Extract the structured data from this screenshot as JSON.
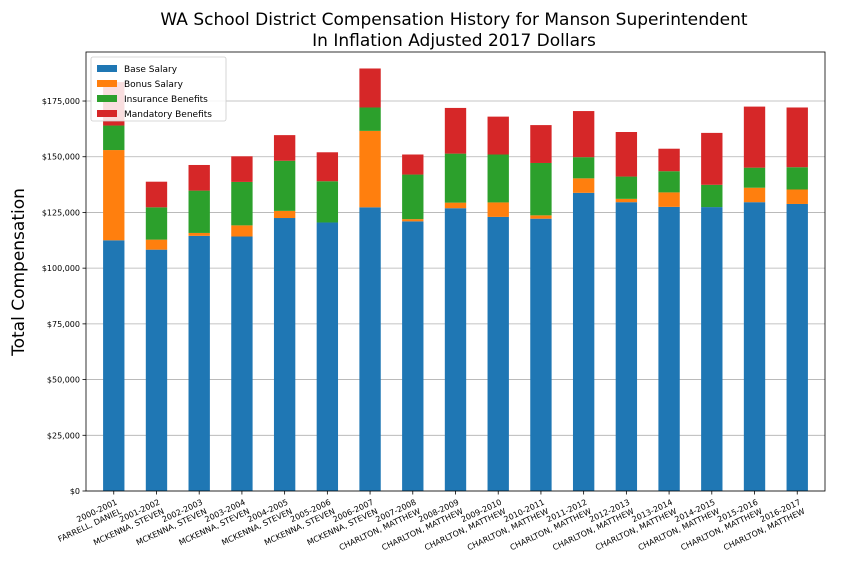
{
  "chart_data": {
    "type": "bar",
    "stacked": true,
    "title_line1": "WA School District Compensation History for Manson Superintendent",
    "title_line2": "In Inflation Adjusted 2017 Dollars",
    "ylabel": "Total Compensation",
    "xlabel": "",
    "ylim": [
      0,
      197000
    ],
    "yticks": [
      {
        "value": 0,
        "label": "$0"
      },
      {
        "value": 25000,
        "label": "$25,000"
      },
      {
        "value": 50000,
        "label": "$50,000"
      },
      {
        "value": 75000,
        "label": "$75,000"
      },
      {
        "value": 100000,
        "label": "$100,000"
      },
      {
        "value": 125000,
        "label": "$125,000"
      },
      {
        "value": 150000,
        "label": "$150,000"
      },
      {
        "value": 175000,
        "label": "$175,000"
      }
    ],
    "grid": "horizontal",
    "legend_position": "top-left",
    "categories": [
      {
        "year": "2000-2001",
        "name": "FARRELL, DANIEL"
      },
      {
        "year": "2001-2002",
        "name": "MCKENNA, STEVEN"
      },
      {
        "year": "2002-2003",
        "name": "MCKENNA, STEVEN"
      },
      {
        "year": "2003-2004",
        "name": "MCKENNA, STEVEN"
      },
      {
        "year": "2004-2005",
        "name": "MCKENNA, STEVEN"
      },
      {
        "year": "2005-2006",
        "name": "MCKENNA, STEVEN"
      },
      {
        "year": "2006-2007",
        "name": "MCKENNA, STEVEN"
      },
      {
        "year": "2007-2008",
        "name": "CHARLTON, MATTHEW"
      },
      {
        "year": "2008-2009",
        "name": "CHARLTON, MATTHEW"
      },
      {
        "year": "2009-2010",
        "name": "CHARLTON, MATTHEW"
      },
      {
        "year": "2010-2011",
        "name": "CHARLTON, MATTHEW"
      },
      {
        "year": "2011-2012",
        "name": "CHARLTON, MATTHEW"
      },
      {
        "year": "2012-2013",
        "name": "CHARLTON, MATTHEW"
      },
      {
        "year": "2013-2014",
        "name": "CHARLTON, MATTHEW"
      },
      {
        "year": "2014-2015",
        "name": "CHARLTON, MATTHEW"
      },
      {
        "year": "2015-2016",
        "name": "CHARLTON, MATTHEW"
      },
      {
        "year": "2016-2017",
        "name": "CHARLTON, MATTHEW"
      }
    ],
    "series": [
      {
        "name": "Base Salary",
        "color": "#1f77b4",
        "values": [
          112500,
          108300,
          114500,
          114200,
          122500,
          120500,
          127300,
          121000,
          126900,
          123000,
          122200,
          133800,
          129600,
          127500,
          127400,
          129600,
          128800
        ]
      },
      {
        "name": "Bonus Salary",
        "color": "#ff7f0e",
        "values": [
          40500,
          4500,
          1300,
          5000,
          3200,
          0,
          34300,
          1000,
          2500,
          6500,
          1500,
          6500,
          1500,
          6500,
          0,
          6500,
          6500
        ]
      },
      {
        "name": "Insurance Benefits",
        "color": "#2ca02c",
        "values": [
          11000,
          14500,
          19000,
          19500,
          22500,
          18500,
          10500,
          20000,
          22000,
          21500,
          23500,
          9500,
          10000,
          9500,
          10000,
          9000,
          10000
        ]
      },
      {
        "name": "Mandatory Benefits",
        "color": "#d62728",
        "values": [
          19500,
          11500,
          11500,
          11500,
          11500,
          13000,
          17500,
          9000,
          20500,
          17000,
          17000,
          20700,
          20000,
          10100,
          23300,
          27400,
          26800
        ]
      }
    ]
  }
}
